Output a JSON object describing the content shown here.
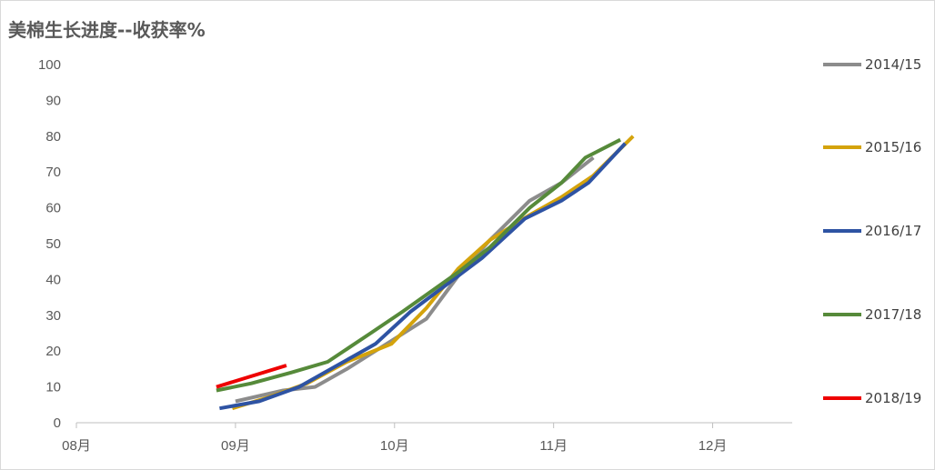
{
  "chart_data": {
    "type": "line",
    "title": "美棉生长进度--收获率%",
    "xlabel": "",
    "ylabel": "",
    "ylim": [
      0,
      100
    ],
    "yticks": [
      0,
      10,
      20,
      30,
      40,
      50,
      60,
      70,
      80,
      90,
      100
    ],
    "x_axis": {
      "unit": "month",
      "range": [
        8,
        12.5
      ],
      "ticks": [
        {
          "value": 8,
          "label": "08月"
        },
        {
          "value": 9,
          "label": "09月"
        },
        {
          "value": 10,
          "label": "10月"
        },
        {
          "value": 11,
          "label": "11月"
        },
        {
          "value": 12,
          "label": "12月"
        }
      ]
    },
    "grid": false,
    "legend": "right",
    "series": [
      {
        "name": "2014/15",
        "color": "#8c8c8c",
        "x": [
          9.0,
          9.3,
          9.5,
          9.7,
          9.95,
          10.2,
          10.4,
          10.6,
          10.85,
          11.05,
          11.25
        ],
        "y": [
          6,
          9,
          10,
          15,
          22,
          29,
          41,
          51,
          62,
          67,
          74
        ]
      },
      {
        "name": "2015/16",
        "color": "#d4a30c",
        "x": [
          8.98,
          9.2,
          9.45,
          9.7,
          9.98,
          10.2,
          10.4,
          10.6,
          10.85,
          11.05,
          11.25,
          11.5
        ],
        "y": [
          4,
          7,
          11,
          17,
          22,
          32,
          43,
          51,
          58,
          63,
          69,
          80
        ]
      },
      {
        "name": "2016/17",
        "color": "#2e53a3",
        "x": [
          8.9,
          9.15,
          9.4,
          9.6,
          9.88,
          10.1,
          10.4,
          10.55,
          10.82,
          11.05,
          11.22,
          11.45
        ],
        "y": [
          4,
          6,
          10,
          15,
          22,
          31,
          41,
          46,
          57,
          62,
          67,
          78
        ]
      },
      {
        "name": "2017/18",
        "color": "#568a3a",
        "x": [
          8.88,
          9.1,
          9.35,
          9.58,
          9.85,
          10.05,
          10.4,
          10.6,
          10.85,
          11.05,
          11.2,
          11.42
        ],
        "y": [
          9,
          11,
          14,
          17,
          25,
          31,
          42,
          49,
          60,
          67,
          74,
          79
        ]
      },
      {
        "name": "2018/19",
        "color": "#ee0000",
        "x": [
          8.88,
          9.32
        ],
        "y": [
          10,
          16
        ]
      }
    ]
  }
}
